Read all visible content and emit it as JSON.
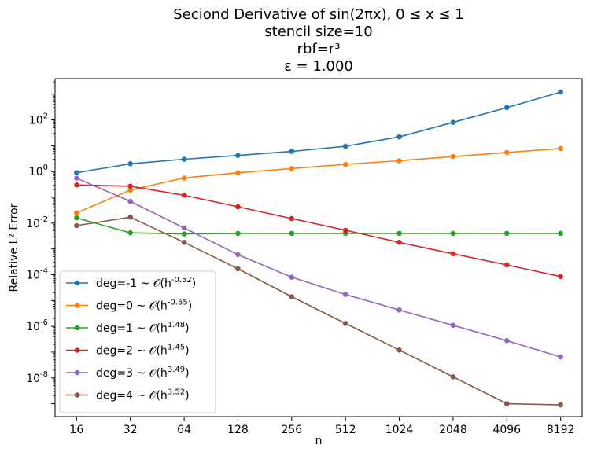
{
  "chart_data": {
    "type": "line",
    "title_lines": [
      "Seciond Derivative of sin(2πx), 0 ≤ x ≤ 1",
      "stencil size=10",
      "rbf=r³",
      "ε = 1.000"
    ],
    "xlabel": "n",
    "ylabel": "Relative L² Error",
    "x_scale": "log2",
    "y_scale": "log10",
    "x": [
      16,
      32,
      64,
      128,
      256,
      512,
      1024,
      2048,
      4096,
      8192
    ],
    "x_tick_labels": [
      "16",
      "32",
      "64",
      "128",
      "256",
      "512",
      "1024",
      "2048",
      "4096",
      "8192"
    ],
    "y_ticks": [
      {
        "exp": "-8",
        "value": 1e-08
      },
      {
        "exp": "-6",
        "value": 1e-06
      },
      {
        "exp": "-4",
        "value": 0.0001
      },
      {
        "exp": "-2",
        "value": 0.01
      },
      {
        "exp": "0",
        "value": 1
      },
      {
        "exp": "2",
        "value": 100
      }
    ],
    "y_tick_base": "10",
    "legend_position": "lower left",
    "grid": false,
    "series": [
      {
        "name": "deg=-1 ~ 𝒪(h^-0.52)",
        "label": "deg=-1",
        "order": "-0.52",
        "color": "#1f77b4",
        "values": [
          0.9,
          2.0,
          3.0,
          4.2,
          6.0,
          9.5,
          22,
          80,
          300,
          1200
        ]
      },
      {
        "name": "deg=0 ~ 𝒪(h^-0.55)",
        "label": "deg=0",
        "order": "-0.55",
        "color": "#ff7f0e",
        "values": [
          0.025,
          0.19,
          0.56,
          0.9,
          1.3,
          1.9,
          2.6,
          3.8,
          5.5,
          7.8
        ]
      },
      {
        "name": "deg=1 ~ 𝒪(h^1.48)",
        "label": "deg=1",
        "order": "1.48",
        "color": "#2ca02c",
        "values": [
          0.016,
          0.0042,
          0.0038,
          0.004,
          0.004,
          0.004,
          0.004,
          0.004,
          0.004,
          0.004
        ]
      },
      {
        "name": "deg=2 ~ 𝒪(h^1.45)",
        "label": "deg=2",
        "order": "1.45",
        "color": "#d62728",
        "values": [
          0.3,
          0.27,
          0.12,
          0.043,
          0.015,
          0.0053,
          0.0018,
          0.00065,
          0.00024,
          8.5e-05
        ]
      },
      {
        "name": "deg=3 ~ 𝒪(h^3.49)",
        "label": "deg=3",
        "order": "3.49",
        "color": "#9467bd",
        "values": [
          0.55,
          0.07,
          0.0065,
          0.0006,
          8e-05,
          1.7e-05,
          4.3e-06,
          1.1e-06,
          2.8e-07,
          6.5e-08
        ]
      },
      {
        "name": "deg=4 ~ 𝒪(h^3.52)",
        "label": "deg=4",
        "order": "3.52",
        "color": "#8c564b",
        "values": [
          0.008,
          0.017,
          0.0018,
          0.00017,
          1.4e-05,
          1.3e-06,
          1.2e-07,
          1.1e-08,
          1e-09,
          9e-10
        ]
      }
    ]
  }
}
